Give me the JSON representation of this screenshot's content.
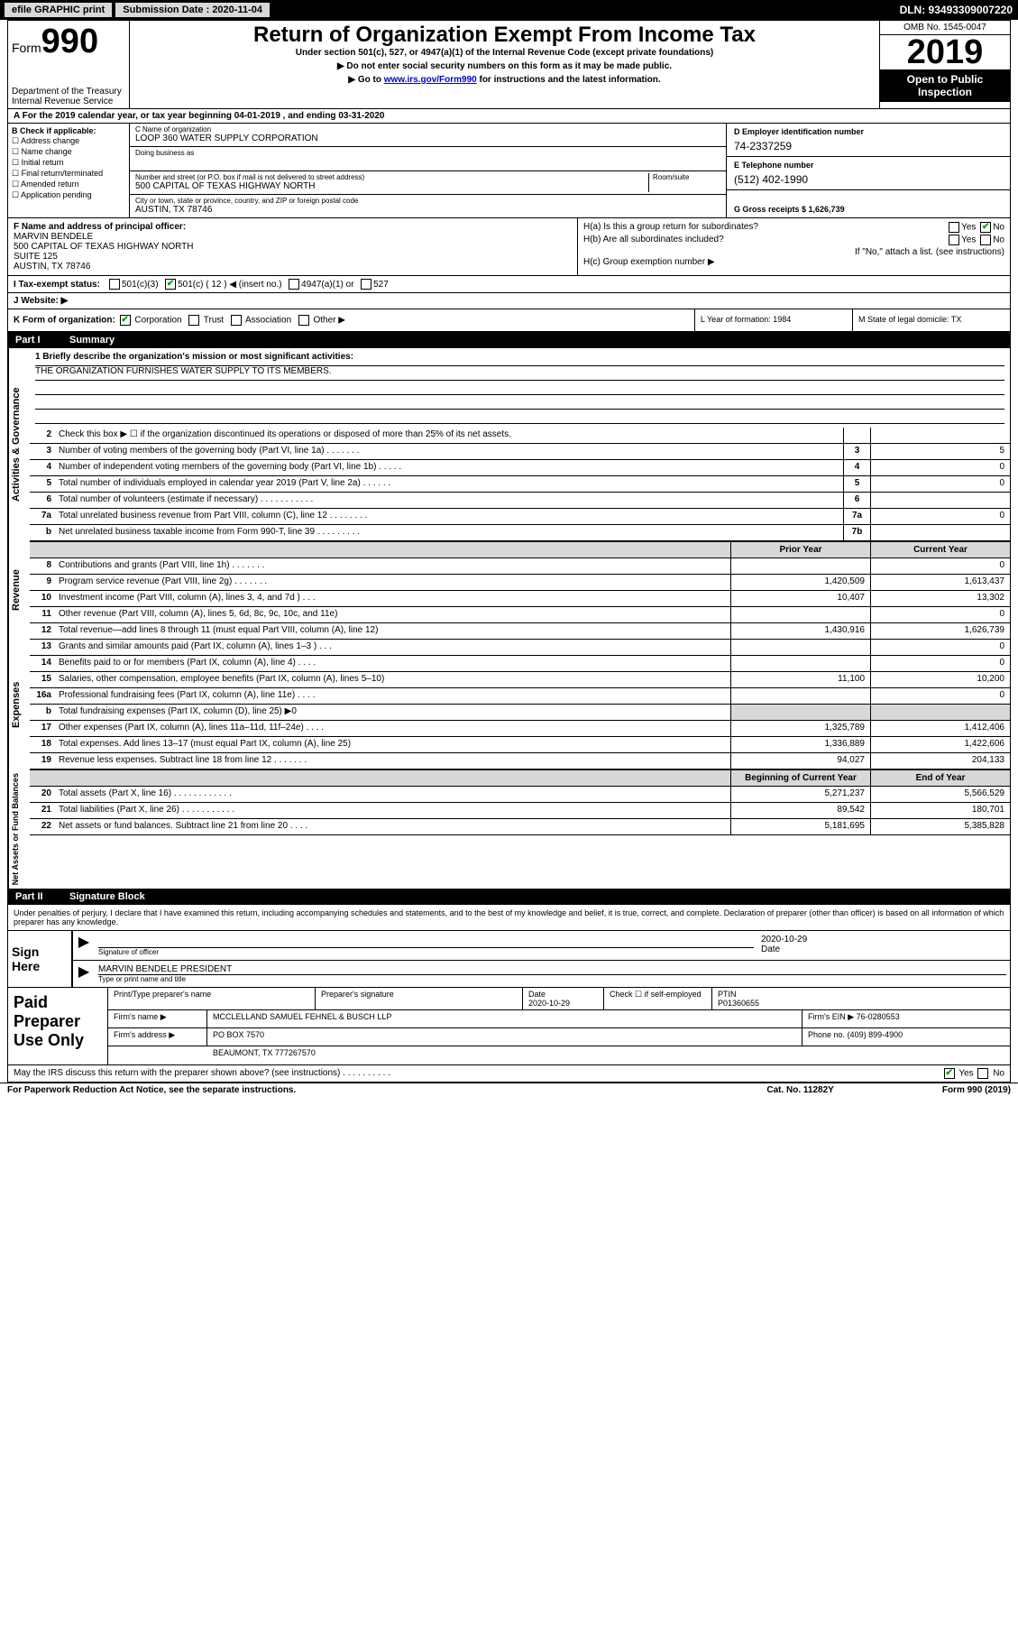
{
  "topbar": {
    "efile_btn": "efile GRAPHIC print",
    "sub_date_label": "Submission Date : 2020-11-04",
    "dln": "DLN: 93493309007220"
  },
  "header": {
    "form_prefix": "Form",
    "form_num": "990",
    "dept1": "Department of the Treasury",
    "dept2": "Internal Revenue Service",
    "title": "Return of Organization Exempt From Income Tax",
    "sub1": "Under section 501(c), 527, or 4947(a)(1) of the Internal Revenue Code (except private foundations)",
    "sub2": "▶ Do not enter social security numbers on this form as it may be made public.",
    "sub3_pre": "▶ Go to ",
    "sub3_link": "www.irs.gov/Form990",
    "sub3_post": " for instructions and the latest information.",
    "omb": "OMB No. 1545-0047",
    "year": "2019",
    "open": "Open to Public Inspection"
  },
  "line_a": "A For the 2019 calendar year, or tax year beginning 04-01-2019    , and ending 03-31-2020",
  "box_b": {
    "label": "B Check if applicable:",
    "opts": [
      "Address change",
      "Name change",
      "Initial return",
      "Final return/terminated",
      "Amended return",
      "Application pending"
    ]
  },
  "box_c": {
    "name_label": "C Name of organization",
    "name": "LOOP 360 WATER SUPPLY CORPORATION",
    "dba_label": "Doing business as",
    "addr_label": "Number and street (or P.O. box if mail is not delivered to street address)",
    "room_label": "Room/suite",
    "addr": "500 CAPITAL OF TEXAS HIGHWAY NORTH",
    "city_label": "City or town, state or province, country, and ZIP or foreign postal code",
    "city": "AUSTIN, TX  78746"
  },
  "box_d": {
    "label": "D Employer identification number",
    "val": "74-2337259"
  },
  "box_e": {
    "label": "E Telephone number",
    "val": "(512) 402-1990"
  },
  "box_g": {
    "label": "G Gross receipts $ 1,626,739"
  },
  "box_f": {
    "label": "F  Name and address of principal officer:",
    "l1": "MARVIN BENDELE",
    "l2": "500 CAPITAL OF TEXAS HIGHWAY NORTH",
    "l3": "SUITE 125",
    "l4": "AUSTIN, TX  78746"
  },
  "box_h": {
    "ha": "H(a)  Is this a group return for subordinates?",
    "hb": "H(b)  Are all subordinates included?",
    "hb_note": "If \"No,\" attach a list. (see instructions)",
    "hc": "H(c)  Group exemption number ▶",
    "yes": "Yes",
    "no": "No"
  },
  "box_i": {
    "label": "I  Tax-exempt status:",
    "o1": "501(c)(3)",
    "o2": "501(c) ( 12 ) ◀ (insert no.)",
    "o3": "4947(a)(1) or",
    "o4": "527"
  },
  "box_j": "J  Website: ▶",
  "box_k": "K Form of organization:",
  "box_k_opts": [
    "Corporation",
    "Trust",
    "Association",
    "Other ▶"
  ],
  "box_l": "L Year of formation: 1984",
  "box_m": "M State of legal domicile: TX",
  "part1": {
    "num": "Part I",
    "title": "Summary"
  },
  "mission": {
    "l1": "1  Briefly describe the organization's mission or most significant activities:",
    "l2": "THE ORGANIZATION FURNISHES WATER SUPPLY TO ITS MEMBERS."
  },
  "gov_rows": [
    {
      "n": "2",
      "d": "Check this box ▶ ☐  if the organization discontinued its operations or disposed of more than 25% of its net assets.",
      "b": "",
      "v": ""
    },
    {
      "n": "3",
      "d": "Number of voting members of the governing body (Part VI, line 1a)  .    .    .    .    .    .    .",
      "b": "3",
      "v": "5"
    },
    {
      "n": "4",
      "d": "Number of independent voting members of the governing body (Part VI, line 1b)  .    .    .    .    .",
      "b": "4",
      "v": "0"
    },
    {
      "n": "5",
      "d": "Total number of individuals employed in calendar year 2019 (Part V, line 2a)  .    .    .    .    .    .",
      "b": "5",
      "v": "0"
    },
    {
      "n": "6",
      "d": "Total number of volunteers (estimate if necessary)    .    .    .    .    .    .    .    .    .    .    .",
      "b": "6",
      "v": ""
    },
    {
      "n": "7a",
      "d": "Total unrelated business revenue from Part VIII, column (C), line 12  .    .    .    .    .    .    .    .",
      "b": "7a",
      "v": "0"
    },
    {
      "n": "b",
      "d": "Net unrelated business taxable income from Form 990-T, line 39  .    .    .    .    .    .    .    .    .",
      "b": "7b",
      "v": ""
    }
  ],
  "yh": {
    "prior": "Prior Year",
    "current": "Current Year"
  },
  "rev_rows": [
    {
      "n": "8",
      "d": "Contributions and grants (Part VIII, line 1h)   .    .    .    .    .    .    .",
      "p": "",
      "c": "0"
    },
    {
      "n": "9",
      "d": "Program service revenue (Part VIII, line 2g)   .    .    .    .    .    .    .",
      "p": "1,420,509",
      "c": "1,613,437"
    },
    {
      "n": "10",
      "d": "Investment income (Part VIII, column (A), lines 3, 4, and 7d )   .    .    .",
      "p": "10,407",
      "c": "13,302"
    },
    {
      "n": "11",
      "d": "Other revenue (Part VIII, column (A), lines 5, 6d, 8c, 9c, 10c, and 11e)",
      "p": "",
      "c": "0"
    },
    {
      "n": "12",
      "d": "Total revenue—add lines 8 through 11 (must equal Part VIII, column (A), line 12)",
      "p": "1,430,916",
      "c": "1,626,739"
    }
  ],
  "exp_rows": [
    {
      "n": "13",
      "d": "Grants and similar amounts paid (Part IX, column (A), lines 1–3 )  .    .    .",
      "p": "",
      "c": "0"
    },
    {
      "n": "14",
      "d": "Benefits paid to or for members (Part IX, column (A), line 4)  .    .    .    .",
      "p": "",
      "c": "0"
    },
    {
      "n": "15",
      "d": "Salaries, other compensation, employee benefits (Part IX, column (A), lines 5–10)",
      "p": "11,100",
      "c": "10,200"
    },
    {
      "n": "16a",
      "d": "Professional fundraising fees (Part IX, column (A), line 11e)  .    .    .    .",
      "p": "",
      "c": "0"
    },
    {
      "n": "b",
      "d": "Total fundraising expenses (Part IX, column (D), line 25) ▶0",
      "p": "shade",
      "c": "shade"
    },
    {
      "n": "17",
      "d": "Other expenses (Part IX, column (A), lines 11a–11d, 11f–24e)  .    .    .    .",
      "p": "1,325,789",
      "c": "1,412,406"
    },
    {
      "n": "18",
      "d": "Total expenses. Add lines 13–17 (must equal Part IX, column (A), line 25)",
      "p": "1,336,889",
      "c": "1,422,606"
    },
    {
      "n": "19",
      "d": "Revenue less expenses. Subtract line 18 from line 12 .    .    .    .    .    .    .",
      "p": "94,027",
      "c": "204,133"
    }
  ],
  "na_hdr": {
    "beg": "Beginning of Current Year",
    "end": "End of Year"
  },
  "na_rows": [
    {
      "n": "20",
      "d": "Total assets (Part X, line 16)  .    .    .    .    .    .    .    .    .    .    .    .",
      "p": "5,271,237",
      "c": "5,566,529"
    },
    {
      "n": "21",
      "d": "Total liabilities (Part X, line 26)  .    .    .    .    .    .    .    .    .    .    .",
      "p": "89,542",
      "c": "180,701"
    },
    {
      "n": "22",
      "d": "Net assets or fund balances. Subtract line 21 from line 20  .    .    .    .",
      "p": "5,181,695",
      "c": "5,385,828"
    }
  ],
  "part2": {
    "num": "Part II",
    "title": "Signature Block"
  },
  "sig_decl": "Under penalties of perjury, I declare that I have examined this return, including accompanying schedules and statements, and to the best of my knowledge and belief, it is true, correct, and complete. Declaration of preparer (other than officer) is based on all information of which preparer has any knowledge.",
  "sign_here": "Sign Here",
  "sig": {
    "officer_label": "Signature of officer",
    "date_label": "Date",
    "date_val": "2020-10-29",
    "name": "MARVIN BENDELE PRESIDENT",
    "name_label": "Type or print name and title"
  },
  "paid": "Paid Preparer Use Only",
  "prep": {
    "c1": "Print/Type preparer's name",
    "c2": "Preparer's signature",
    "c3": "Date",
    "c3v": "2020-10-29",
    "c4": "Check ☐ if self-employed",
    "c5": "PTIN",
    "c5v": "P01360655",
    "firm_label": "Firm's name      ▶",
    "firm": "MCCLELLAND SAMUEL FEHNEL & BUSCH LLP",
    "ein_label": "Firm's EIN ▶",
    "ein": "76-0280553",
    "addr_label": "Firm's address ▶",
    "addr1": "PO BOX 7570",
    "addr2": "BEAUMONT, TX  777267570",
    "phone_label": "Phone no.",
    "phone": "(409) 899-4900"
  },
  "irs_discuss": "May the IRS discuss this return with the preparer shown above? (see instructions)   .    .    .    .    .    .    .    .    .    .",
  "footer": {
    "l": "For Paperwork Reduction Act Notice, see the separate instructions.",
    "m": "Cat. No. 11282Y",
    "r": "Form 990 (2019)"
  }
}
